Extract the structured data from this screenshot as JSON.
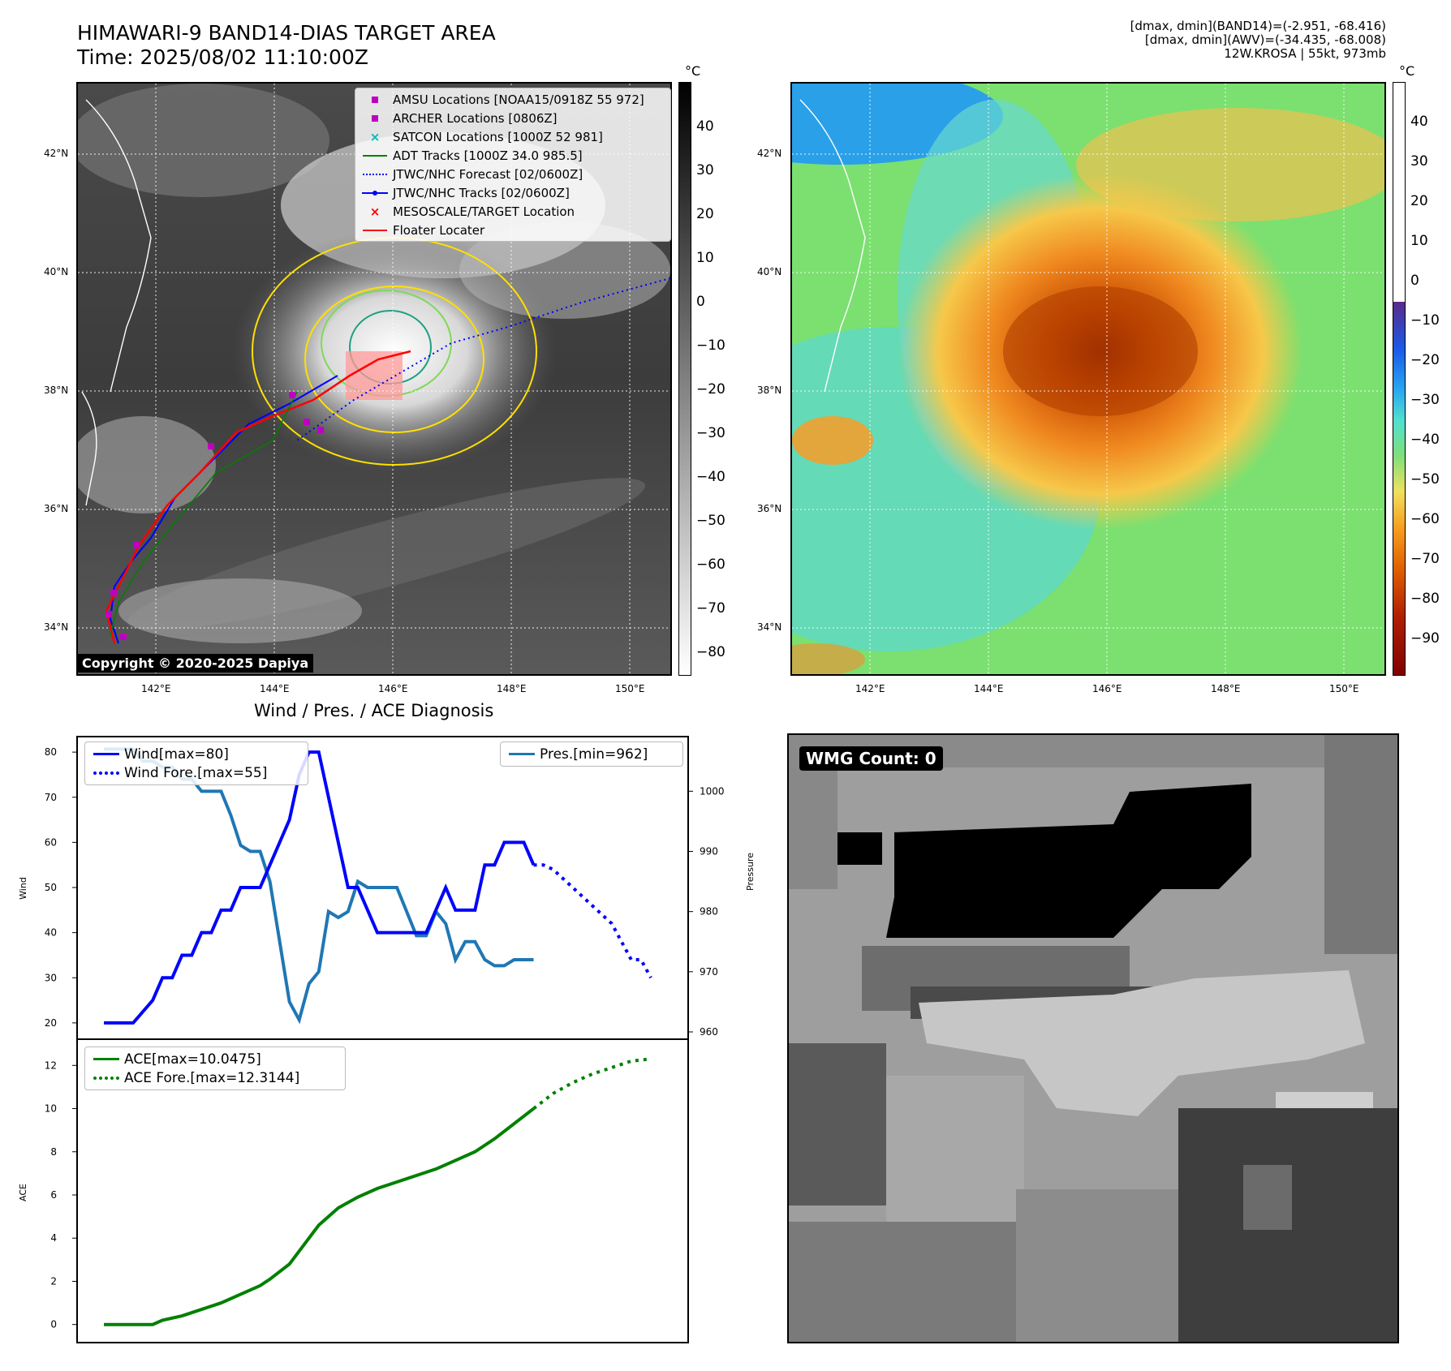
{
  "header": {
    "title_line1": "HIMAWARI-9 BAND14-DIAS TARGET AREA",
    "title_line2": "Time: 2025/08/02 11:10:00Z",
    "info_line1": "[dmax, dmin](BAND14)=(-2.951, -68.416)",
    "info_line2": "[dmax, dmin](AWV)=(-34.435, -68.008)",
    "info_line3": "12W.KROSA | 55kt, 973mb"
  },
  "map": {
    "lat_labels": [
      "42°N",
      "40°N",
      "38°N",
      "36°N",
      "34°N"
    ],
    "lon_labels": [
      "142°E",
      "144°E",
      "146°E",
      "148°E",
      "150°E"
    ],
    "copyright": "Copyright © 2020-2025 Dapiya",
    "legend": [
      {
        "label": "AMSU Locations [NOAA15/0918Z 55 972]",
        "symbol": "square",
        "color": "#c000c0"
      },
      {
        "label": "ARCHER Locations [0806Z]",
        "symbol": "square",
        "color": "#c000c0"
      },
      {
        "label": "SATCON Locations [1000Z 52 981]",
        "symbol": "x",
        "color": "#00b8b8"
      },
      {
        "label": "ADT Tracks [1000Z 34.0 985.5]",
        "symbol": "line",
        "color": "#008000"
      },
      {
        "label": "JTWC/NHC Forecast [02/0600Z]",
        "symbol": "dotted",
        "color": "#0000ff"
      },
      {
        "label": "JTWC/NHC Tracks [02/0600Z]",
        "symbol": "line-dot",
        "color": "#0000ff"
      },
      {
        "label": "MESOSCALE/TARGET Location",
        "symbol": "x",
        "color": "#ff0000"
      },
      {
        "label": "Floater Locater",
        "symbol": "line",
        "color": "#ff0000"
      }
    ]
  },
  "colorbar_gray": {
    "unit": "°C",
    "ticks": [
      "40",
      "30",
      "20",
      "10",
      "0",
      "−10",
      "−20",
      "−30",
      "−40",
      "−50",
      "−60",
      "−70",
      "−80"
    ]
  },
  "colorbar_color": {
    "unit": "°C",
    "ticks": [
      "40",
      "30",
      "20",
      "10",
      "0",
      "−10",
      "−20",
      "−30",
      "−40",
      "−50",
      "−60",
      "−70",
      "−80",
      "−90"
    ]
  },
  "diagnosis": {
    "title": "Wind / Pres. / ACE Diagnosis",
    "wind_label": "Wind",
    "pressure_label": "Pressure",
    "ace_label": "ACE",
    "legend_wind": "Wind[max=80]",
    "legend_wind_fore": "Wind Fore.[max=55]",
    "legend_pres": "Pres.[min=962]",
    "legend_ace": "ACE[max=10.0475]",
    "legend_ace_fore": "ACE Fore.[max=12.3144]"
  },
  "wmg": {
    "label": "WMG Count: 0"
  },
  "colors": {
    "wind": "#0000ff",
    "pressure": "#1f77b4",
    "ace": "#008000"
  },
  "chart_data": [
    {
      "type": "line",
      "title": "Wind / Pres. / ACE Diagnosis",
      "ylabel": "Wind",
      "ylim": [
        18,
        82
      ],
      "xlim": [
        0,
        57
      ],
      "series": [
        {
          "name": "Wind[max=80]",
          "style": "solid",
          "x": [
            0,
            3,
            5,
            6,
            7,
            8,
            9,
            10,
            11,
            12,
            13,
            14,
            15,
            16,
            17,
            18,
            19,
            20,
            21,
            22,
            23,
            24,
            25,
            26,
            27,
            28,
            29,
            30,
            31,
            32,
            33,
            34,
            35,
            36,
            37,
            38,
            39,
            40,
            41,
            42,
            43,
            44
          ],
          "y": [
            20,
            20,
            25,
            30,
            30,
            35,
            35,
            40,
            40,
            45,
            45,
            50,
            50,
            50,
            55,
            60,
            65,
            75,
            80,
            80,
            70,
            60,
            50,
            50,
            45,
            40,
            40,
            40,
            40,
            40,
            40,
            45,
            50,
            45,
            45,
            45,
            55,
            55,
            60,
            60,
            60,
            55
          ]
        },
        {
          "name": "Wind Fore.[max=55]",
          "style": "dotted",
          "x": [
            44,
            45,
            46,
            47,
            48,
            49,
            50,
            51,
            52,
            53,
            54,
            55,
            56
          ],
          "y": [
            55,
            55,
            54,
            52,
            50,
            48,
            46,
            44,
            42,
            38,
            34,
            34,
            30
          ]
        }
      ],
      "ticks_y": [
        20,
        30,
        40,
        50,
        60,
        70,
        80
      ]
    },
    {
      "type": "line",
      "ylabel": "Pressure",
      "ylim": [
        960,
        1008
      ],
      "series": [
        {
          "name": "Pres.[min=962]",
          "x": [
            0,
            2,
            3,
            4,
            5,
            6,
            7,
            8,
            9,
            10,
            11,
            12,
            13,
            14,
            15,
            16,
            17,
            18,
            19,
            20,
            21,
            22,
            23,
            24,
            25,
            26,
            27,
            28,
            29,
            30,
            31,
            32,
            33,
            34,
            35,
            36,
            37,
            38,
            39,
            40,
            41,
            42,
            43,
            44
          ],
          "y": [
            1007,
            1007,
            1007,
            1005,
            1005,
            1004,
            1004,
            1002,
            1002,
            1000,
            1000,
            1000,
            996,
            991,
            990,
            990,
            985,
            975,
            965,
            962,
            968,
            970,
            980,
            979,
            980,
            985,
            984,
            984,
            984,
            984,
            980,
            976,
            976,
            980,
            978,
            972,
            975,
            975,
            972,
            971,
            971,
            972,
            972,
            972
          ]
        }
      ],
      "ticks_y": [
        960,
        970,
        980,
        990,
        1000
      ]
    },
    {
      "type": "line",
      "ylabel": "ACE",
      "ylim": [
        -0.5,
        12.8
      ],
      "series": [
        {
          "name": "ACE[max=10.0475]",
          "style": "solid",
          "x": [
            0,
            3,
            5,
            6,
            8,
            10,
            12,
            14,
            16,
            17,
            19,
            20,
            22,
            24,
            26,
            28,
            30,
            32,
            34,
            36,
            38,
            40,
            42,
            44
          ],
          "y": [
            0,
            0,
            0,
            0.2,
            0.4,
            0.7,
            1.0,
            1.4,
            1.8,
            2.1,
            2.8,
            3.4,
            4.6,
            5.4,
            5.9,
            6.3,
            6.6,
            6.9,
            7.2,
            7.6,
            8.0,
            8.6,
            9.3,
            10.0
          ]
        },
        {
          "name": "ACE Fore.[max=12.3144]",
          "style": "dotted",
          "x": [
            44,
            46,
            48,
            50,
            52,
            54,
            56
          ],
          "y": [
            10.0,
            10.7,
            11.2,
            11.6,
            11.9,
            12.2,
            12.3
          ]
        }
      ],
      "ticks_y": [
        0,
        2,
        4,
        6,
        8,
        10,
        12
      ]
    }
  ]
}
